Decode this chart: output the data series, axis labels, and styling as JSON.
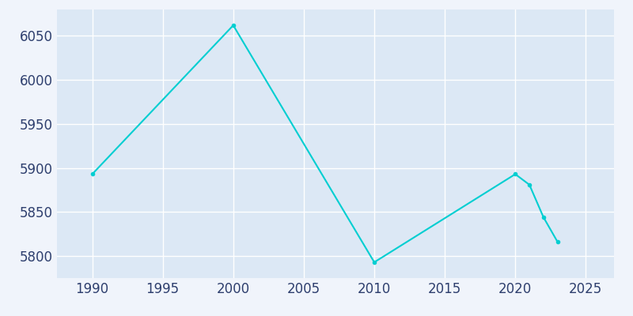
{
  "years": [
    1990,
    2000,
    2010,
    2020,
    2021,
    2022,
    2023
  ],
  "population": [
    5893,
    6062,
    5793,
    5893,
    5881,
    5844,
    5816
  ],
  "line_color": "#00CED1",
  "marker": "o",
  "marker_size": 3,
  "line_width": 1.5,
  "figure_bg_color": "#f0f4fb",
  "plot_bg_color": "#dce8f5",
  "grid_color": "#ffffff",
  "tick_color": "#2e3f6e",
  "xlabel": "",
  "ylabel": "",
  "xlim": [
    1987.5,
    2027
  ],
  "ylim": [
    5775,
    6080
  ],
  "yticks": [
    5800,
    5850,
    5900,
    5950,
    6000,
    6050
  ],
  "xticks": [
    1990,
    1995,
    2000,
    2005,
    2010,
    2015,
    2020,
    2025
  ],
  "tick_label_fontsize": 12,
  "tick_label_color": "#2e3f6e"
}
